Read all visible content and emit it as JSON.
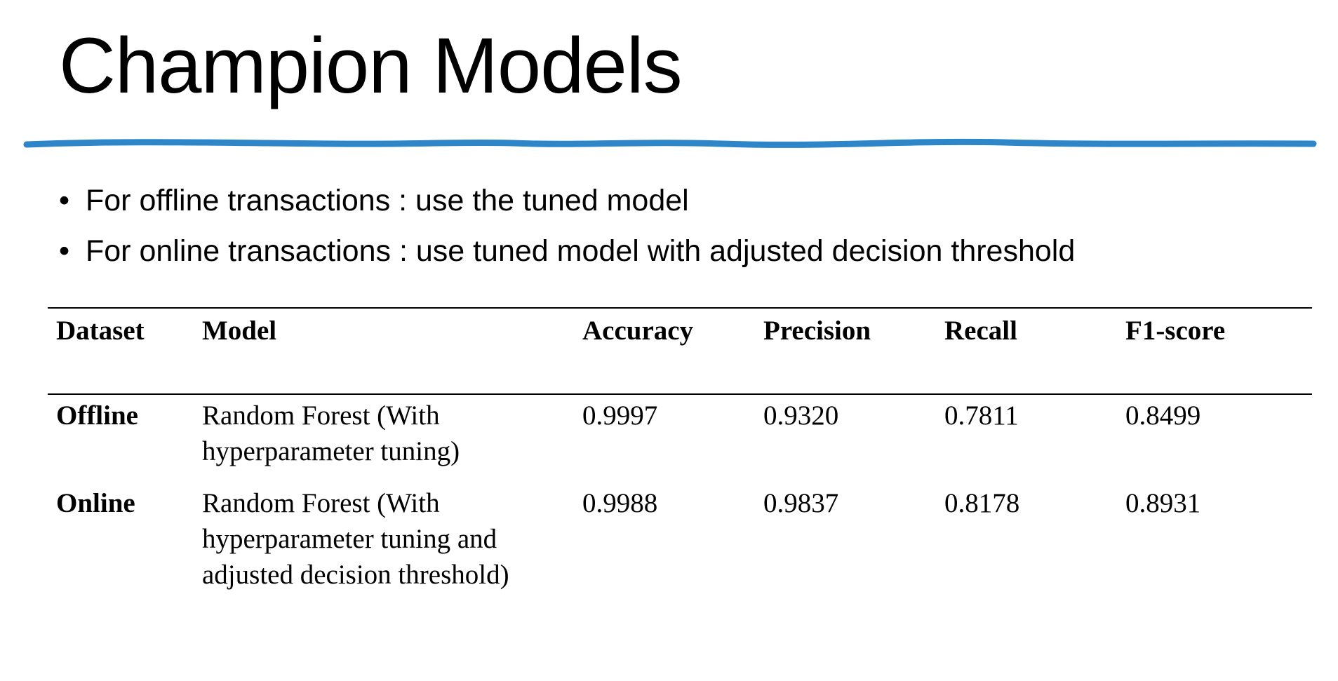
{
  "slide": {
    "title": "Champion Models",
    "accent_color": "#2e86c8"
  },
  "bullets": [
    "For offline transactions : use the tuned model",
    "For online transactions : use tuned model with adjusted decision threshold"
  ],
  "bullet_symbol": "•",
  "table": {
    "headers": [
      "Dataset",
      "Model",
      "Accuracy",
      "Precision",
      "Recall",
      "F1-score"
    ],
    "rows": [
      {
        "dataset": "Offline",
        "model": "Random Forest (With hyperparameter tuning)",
        "accuracy": "0.9997",
        "precision": "0.9320",
        "recall": "0.7811",
        "f1": "0.8499"
      },
      {
        "dataset": "Online",
        "model": "Random Forest (With hyperparameter tuning and adjusted decision threshold)",
        "accuracy": "0.9988",
        "precision": "0.9837",
        "recall": "0.8178",
        "f1": "0.8931"
      }
    ]
  }
}
